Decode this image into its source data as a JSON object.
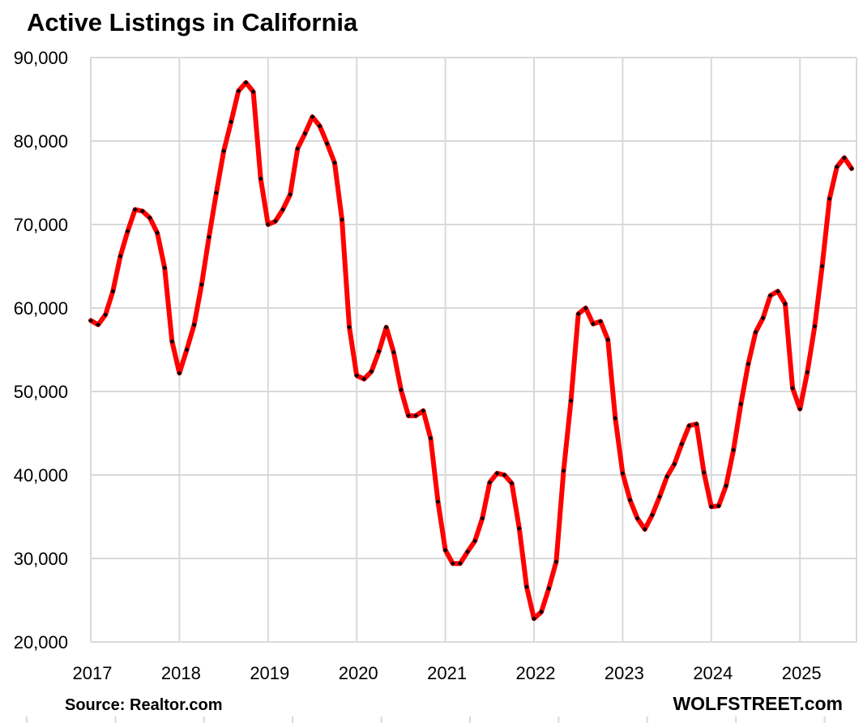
{
  "chart_data": {
    "type": "line",
    "title": "Active Listings in California",
    "xlabel": "",
    "ylabel": "",
    "ylim": [
      20000,
      90000
    ],
    "yticks": [
      20000,
      30000,
      40000,
      50000,
      60000,
      70000,
      80000,
      90000
    ],
    "ytick_labels": [
      "20,000",
      "30,000",
      "40,000",
      "50,000",
      "60,000",
      "70,000",
      "80,000",
      "90,000"
    ],
    "xtick_labels": [
      "2017",
      "2018",
      "2019",
      "2020",
      "2021",
      "2022",
      "2023",
      "2024",
      "2025"
    ],
    "x_start": "2017-01",
    "grid": true,
    "series": [
      {
        "color": "#ff0000",
        "marker_color": "#000000",
        "values": [
          58500,
          58000,
          59200,
          62000,
          66200,
          69200,
          71800,
          71600,
          70800,
          69000,
          64800,
          56000,
          52200,
          55000,
          58000,
          62800,
          68500,
          73800,
          78800,
          82300,
          86000,
          87000,
          85900,
          75500,
          70000,
          70400,
          71800,
          73600,
          79100,
          80900,
          82900,
          81800,
          79700,
          77400,
          70600,
          57700,
          51900,
          51500,
          52400,
          54800,
          57700,
          54700,
          50200,
          47100,
          47100,
          47700,
          44400,
          36800,
          31000,
          29400,
          29400,
          30800,
          32100,
          34800,
          39100,
          40200,
          40000,
          39000,
          33600,
          26600,
          22800,
          23600,
          26400,
          29600,
          40500,
          48900,
          59300,
          60000,
          58100,
          58400,
          56200,
          46800,
          40200,
          37000,
          34800,
          33500,
          35200,
          37400,
          39800,
          41300,
          43700,
          45900,
          46100,
          40300,
          36200,
          36300,
          38700,
          43000,
          48500,
          53300,
          57100,
          58800,
          61500,
          62000,
          60500,
          50400,
          47900,
          52300,
          57800,
          65000,
          73100,
          76900,
          78000,
          76700
        ]
      }
    ]
  },
  "footer": {
    "source": "Source: Realtor.com",
    "brand": "WOLFSTREET.com"
  }
}
